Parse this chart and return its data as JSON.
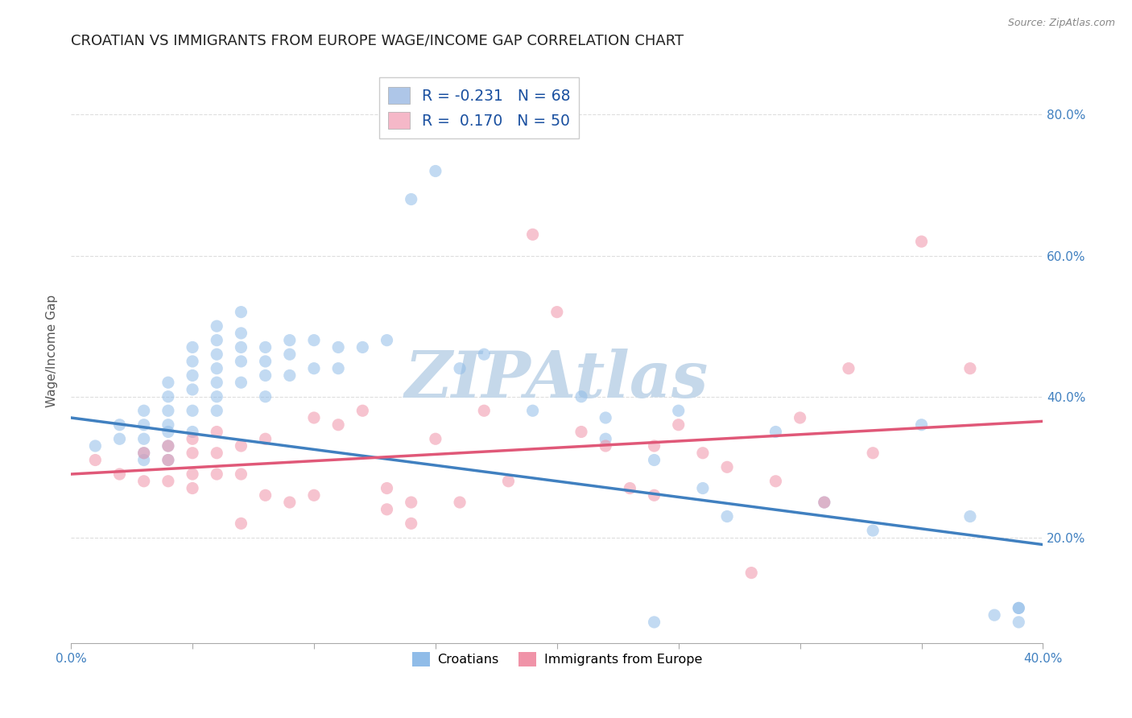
{
  "title": "CROATIAN VS IMMIGRANTS FROM EUROPE WAGE/INCOME GAP CORRELATION CHART",
  "source": "Source: ZipAtlas.com",
  "ylabel": "Wage/Income Gap",
  "yticks_right": [
    "20.0%",
    "40.0%",
    "60.0%",
    "80.0%"
  ],
  "yticks_right_vals": [
    0.2,
    0.4,
    0.6,
    0.8
  ],
  "xmin": 0.0,
  "xmax": 0.4,
  "ymin": 0.05,
  "ymax": 0.88,
  "legend_label1": "R = -0.231   N = 68",
  "legend_label2": "R =  0.170   N = 50",
  "legend_color1": "#aec6e8",
  "legend_color2": "#f5b8c8",
  "blue_color": "#90bce8",
  "pink_color": "#f093a8",
  "blue_line_color": "#4080c0",
  "pink_line_color": "#e05878",
  "watermark": "ZIPAtlas",
  "watermark_color": "#c5d8ea",
  "croatians_label": "Croatians",
  "immigrants_label": "Immigrants from Europe",
  "blue_scatter_x": [
    0.01,
    0.02,
    0.02,
    0.03,
    0.03,
    0.03,
    0.03,
    0.03,
    0.04,
    0.04,
    0.04,
    0.04,
    0.04,
    0.04,
    0.04,
    0.05,
    0.05,
    0.05,
    0.05,
    0.05,
    0.05,
    0.06,
    0.06,
    0.06,
    0.06,
    0.06,
    0.06,
    0.06,
    0.07,
    0.07,
    0.07,
    0.07,
    0.07,
    0.08,
    0.08,
    0.08,
    0.08,
    0.09,
    0.09,
    0.09,
    0.1,
    0.1,
    0.11,
    0.11,
    0.12,
    0.13,
    0.14,
    0.15,
    0.16,
    0.17,
    0.19,
    0.21,
    0.22,
    0.22,
    0.24,
    0.24,
    0.25,
    0.26,
    0.27,
    0.29,
    0.31,
    0.33,
    0.35,
    0.37,
    0.38,
    0.39,
    0.39,
    0.39
  ],
  "blue_scatter_y": [
    0.33,
    0.36,
    0.34,
    0.38,
    0.36,
    0.34,
    0.32,
    0.31,
    0.42,
    0.4,
    0.38,
    0.36,
    0.35,
    0.33,
    0.31,
    0.47,
    0.45,
    0.43,
    0.41,
    0.38,
    0.35,
    0.5,
    0.48,
    0.46,
    0.44,
    0.42,
    0.4,
    0.38,
    0.52,
    0.49,
    0.47,
    0.45,
    0.42,
    0.47,
    0.45,
    0.43,
    0.4,
    0.48,
    0.46,
    0.43,
    0.48,
    0.44,
    0.47,
    0.44,
    0.47,
    0.48,
    0.68,
    0.72,
    0.44,
    0.46,
    0.38,
    0.4,
    0.37,
    0.34,
    0.31,
    0.08,
    0.38,
    0.27,
    0.23,
    0.35,
    0.25,
    0.21,
    0.36,
    0.23,
    0.09,
    0.1,
    0.1,
    0.08
  ],
  "pink_scatter_x": [
    0.01,
    0.02,
    0.03,
    0.03,
    0.04,
    0.04,
    0.04,
    0.05,
    0.05,
    0.05,
    0.05,
    0.06,
    0.06,
    0.06,
    0.07,
    0.07,
    0.07,
    0.08,
    0.08,
    0.09,
    0.1,
    0.1,
    0.11,
    0.12,
    0.13,
    0.13,
    0.14,
    0.14,
    0.15,
    0.16,
    0.17,
    0.18,
    0.19,
    0.2,
    0.21,
    0.22,
    0.23,
    0.24,
    0.24,
    0.25,
    0.26,
    0.27,
    0.28,
    0.29,
    0.3,
    0.31,
    0.32,
    0.33,
    0.35,
    0.37
  ],
  "pink_scatter_y": [
    0.31,
    0.29,
    0.32,
    0.28,
    0.33,
    0.31,
    0.28,
    0.34,
    0.32,
    0.29,
    0.27,
    0.35,
    0.32,
    0.29,
    0.33,
    0.29,
    0.22,
    0.34,
    0.26,
    0.25,
    0.37,
    0.26,
    0.36,
    0.38,
    0.27,
    0.24,
    0.25,
    0.22,
    0.34,
    0.25,
    0.38,
    0.28,
    0.63,
    0.52,
    0.35,
    0.33,
    0.27,
    0.33,
    0.26,
    0.36,
    0.32,
    0.3,
    0.15,
    0.28,
    0.37,
    0.25,
    0.44,
    0.32,
    0.62,
    0.44
  ],
  "blue_line_y_start": 0.37,
  "blue_line_y_end": 0.19,
  "pink_line_y_start": 0.29,
  "pink_line_y_end": 0.365,
  "background_color": "#ffffff",
  "grid_color": "#dedede",
  "title_fontsize": 13,
  "axis_fontsize": 11,
  "scatter_size": 120,
  "scatter_alpha": 0.55,
  "xtick_positions": [
    0.0,
    0.05,
    0.1,
    0.15,
    0.2,
    0.25,
    0.3,
    0.35,
    0.4
  ]
}
